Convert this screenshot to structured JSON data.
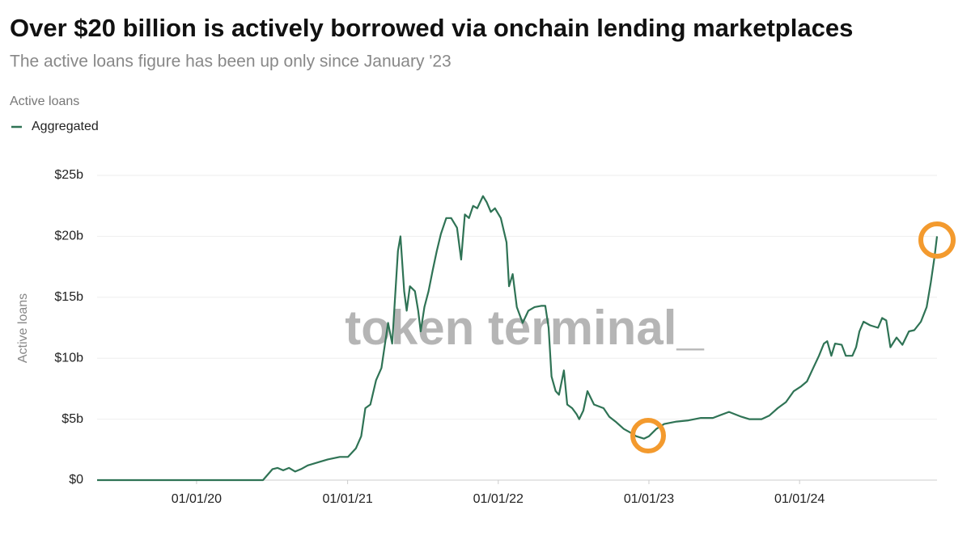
{
  "chart_data": {
    "type": "line",
    "title": "Over $20 billion is actively borrowed via onchain lending marketplaces",
    "subtitle": "The active loans figure has been up only since January '23",
    "legend_title": "Active loans",
    "y_label": "Active loans",
    "watermark": "token terminal_",
    "grid": true,
    "x": [
      "2019-05-05",
      "2020-06-10",
      "2020-07-03",
      "2020-07-15",
      "2020-07-29",
      "2020-08-12",
      "2020-08-27",
      "2020-09-10",
      "2020-09-26",
      "2020-10-25",
      "2020-11-14",
      "2020-12-13",
      "2021-01-02",
      "2021-01-21",
      "2021-02-03",
      "2021-02-13",
      "2021-02-25",
      "2021-03-11",
      "2021-03-24",
      "2021-04-09",
      "2021-04-19",
      "2021-05-03",
      "2021-05-09",
      "2021-05-18",
      "2021-05-24",
      "2021-06-01",
      "2021-06-13",
      "2021-06-21",
      "2021-06-27",
      "2021-07-06",
      "2021-07-16",
      "2021-07-26",
      "2021-08-05",
      "2021-08-15",
      "2021-08-28",
      "2021-09-09",
      "2021-09-23",
      "2021-10-03",
      "2021-10-12",
      "2021-10-22",
      "2021-11-01",
      "2021-11-11",
      "2021-11-25",
      "2021-12-04",
      "2021-12-14",
      "2021-12-24",
      "2022-01-07",
      "2022-01-21",
      "2022-01-27",
      "2022-02-05",
      "2022-02-15",
      "2022-03-01",
      "2022-03-15",
      "2022-03-30",
      "2022-04-15",
      "2022-04-25",
      "2022-05-03",
      "2022-05-10",
      "2022-05-20",
      "2022-05-28",
      "2022-06-09",
      "2022-06-17",
      "2022-06-29",
      "2022-07-10",
      "2022-07-16",
      "2022-07-26",
      "2022-08-05",
      "2022-08-21",
      "2022-09-13",
      "2022-09-27",
      "2022-10-12",
      "2022-11-01",
      "2022-11-17",
      "2022-12-01",
      "2022-12-20",
      "2023-01-01",
      "2023-01-19",
      "2023-02-07",
      "2023-03-09",
      "2023-04-07",
      "2023-05-07",
      "2023-06-05",
      "2023-07-14",
      "2023-08-13",
      "2023-09-01",
      "2023-10-01",
      "2023-10-20",
      "2023-11-09",
      "2023-11-29",
      "2023-12-18",
      "2024-01-05",
      "2024-01-19",
      "2024-02-03",
      "2024-02-17",
      "2024-02-29",
      "2024-03-08",
      "2024-03-18",
      "2024-03-27",
      "2024-04-12",
      "2024-04-22",
      "2024-05-08",
      "2024-05-17",
      "2024-05-25",
      "2024-06-04",
      "2024-06-20",
      "2024-07-09",
      "2024-07-19",
      "2024-07-29",
      "2024-08-08",
      "2024-08-23",
      "2024-09-06",
      "2024-09-22",
      "2024-10-05",
      "2024-10-21",
      "2024-11-04",
      "2024-11-14",
      "2024-11-23",
      "2024-11-29"
    ],
    "series": [
      {
        "name": "Aggregated",
        "color": "#2f7355",
        "values": [
          0,
          0,
          0.9,
          1.0,
          0.8,
          1.0,
          0.7,
          0.9,
          1.2,
          1.5,
          1.7,
          1.9,
          1.9,
          2.6,
          3.6,
          5.9,
          6.2,
          8.2,
          9.2,
          12.9,
          11.2,
          18.8,
          20.0,
          15.5,
          13.9,
          15.9,
          15.5,
          13.9,
          12.2,
          14.2,
          15.5,
          17.2,
          18.8,
          20.2,
          21.5,
          21.5,
          20.7,
          18.1,
          21.8,
          21.5,
          22.5,
          22.3,
          23.3,
          22.8,
          22.0,
          22.3,
          21.5,
          19.5,
          15.9,
          16.9,
          14.2,
          12.9,
          13.9,
          14.2,
          14.3,
          14.3,
          12.5,
          8.5,
          7.3,
          7.0,
          9.0,
          6.2,
          5.9,
          5.4,
          5.0,
          5.7,
          7.3,
          6.2,
          5.9,
          5.2,
          4.8,
          4.2,
          3.9,
          3.6,
          3.4,
          3.6,
          4.2,
          4.6,
          4.8,
          4.9,
          5.1,
          5.1,
          5.6,
          5.2,
          5.0,
          5.0,
          5.3,
          5.9,
          6.4,
          7.3,
          7.7,
          8.1,
          9.2,
          10.2,
          11.2,
          11.4,
          10.2,
          11.2,
          11.1,
          10.2,
          10.2,
          10.9,
          12.2,
          13.0,
          12.7,
          12.5,
          13.3,
          13.1,
          10.9,
          11.7,
          11.1,
          12.2,
          12.3,
          13.0,
          14.2,
          16.2,
          18.3,
          20.0
        ]
      }
    ],
    "xlim": [
      "2019-05-05",
      "2024-11-29"
    ],
    "xticks": [
      {
        "value": "2020-01-01",
        "label": "01/01/20"
      },
      {
        "value": "2021-01-01",
        "label": "01/01/21"
      },
      {
        "value": "2022-01-01",
        "label": "01/01/22"
      },
      {
        "value": "2023-01-01",
        "label": "01/01/23"
      },
      {
        "value": "2024-01-01",
        "label": "01/01/24"
      }
    ],
    "ylim": [
      0,
      25
    ],
    "yticks": [
      {
        "value": 0,
        "label": "$0"
      },
      {
        "value": 5,
        "label": "$5b"
      },
      {
        "value": 10,
        "label": "$10b"
      },
      {
        "value": 15,
        "label": "$15b"
      },
      {
        "value": 20,
        "label": "$20b"
      },
      {
        "value": 25,
        "label": "$25b"
      }
    ]
  }
}
